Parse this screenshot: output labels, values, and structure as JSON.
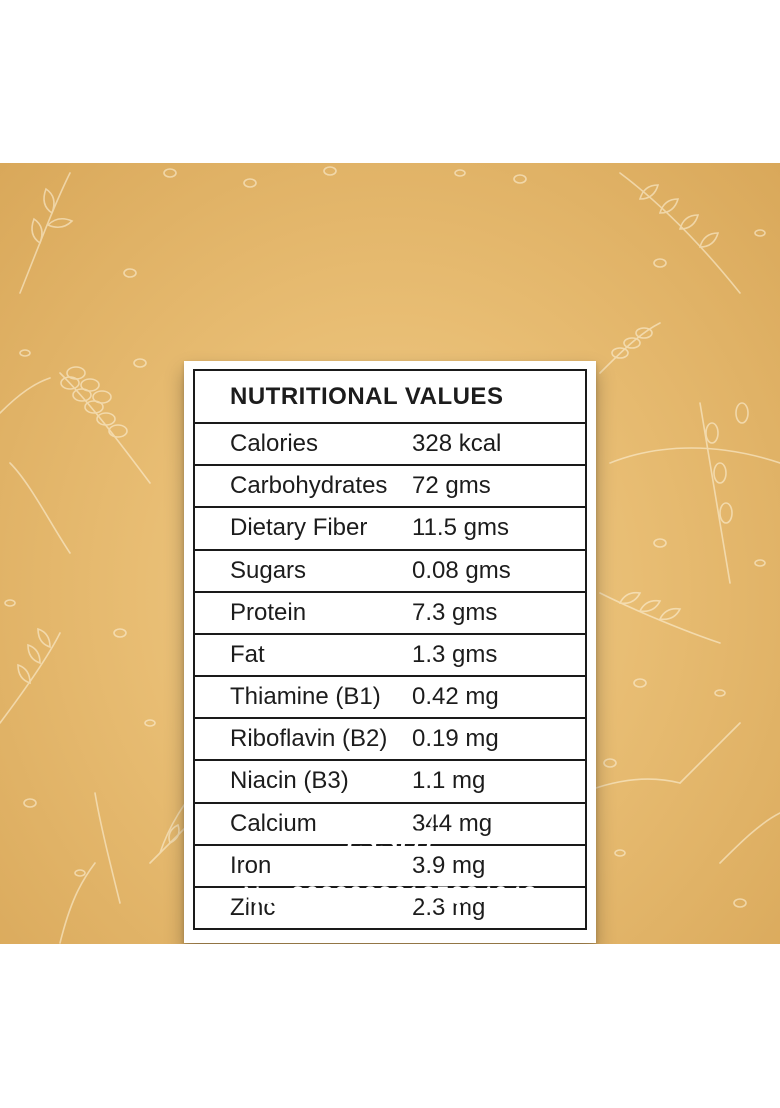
{
  "table": {
    "title": "NUTRITIONAL VALUES",
    "rows": [
      {
        "name": "Calories",
        "value": "328 kcal"
      },
      {
        "name": "Carbohydrates",
        "value": "72 gms"
      },
      {
        "name": "Dietary Fiber",
        "value": "11.5 gms"
      },
      {
        "name": "Sugars",
        "value": "0.08 gms"
      },
      {
        "name": "Protein",
        "value": "7.3 gms"
      },
      {
        "name": "Fat",
        "value": "1.3 gms"
      },
      {
        "name": "Thiamine (B1)",
        "value": "0.42 mg"
      },
      {
        "name": "Riboflavin (B2)",
        "value": "0.19 mg"
      },
      {
        "name": "Niacin (B3)",
        "value": "1.1 mg"
      },
      {
        "name": "Calcium",
        "value": "344 mg"
      },
      {
        "name": "Iron",
        "value": "3.9 mg"
      },
      {
        "name": "Zinc",
        "value": "2.3 mg"
      }
    ]
  },
  "logo": {
    "text": "fssai"
  },
  "license": {
    "text": "No. 20230826105084043"
  },
  "colors": {
    "background": "#e8bd73",
    "card": "#ffffff",
    "border": "#1a1a1a",
    "text": "#1c1c1c",
    "footer_text": "#ffffff"
  }
}
